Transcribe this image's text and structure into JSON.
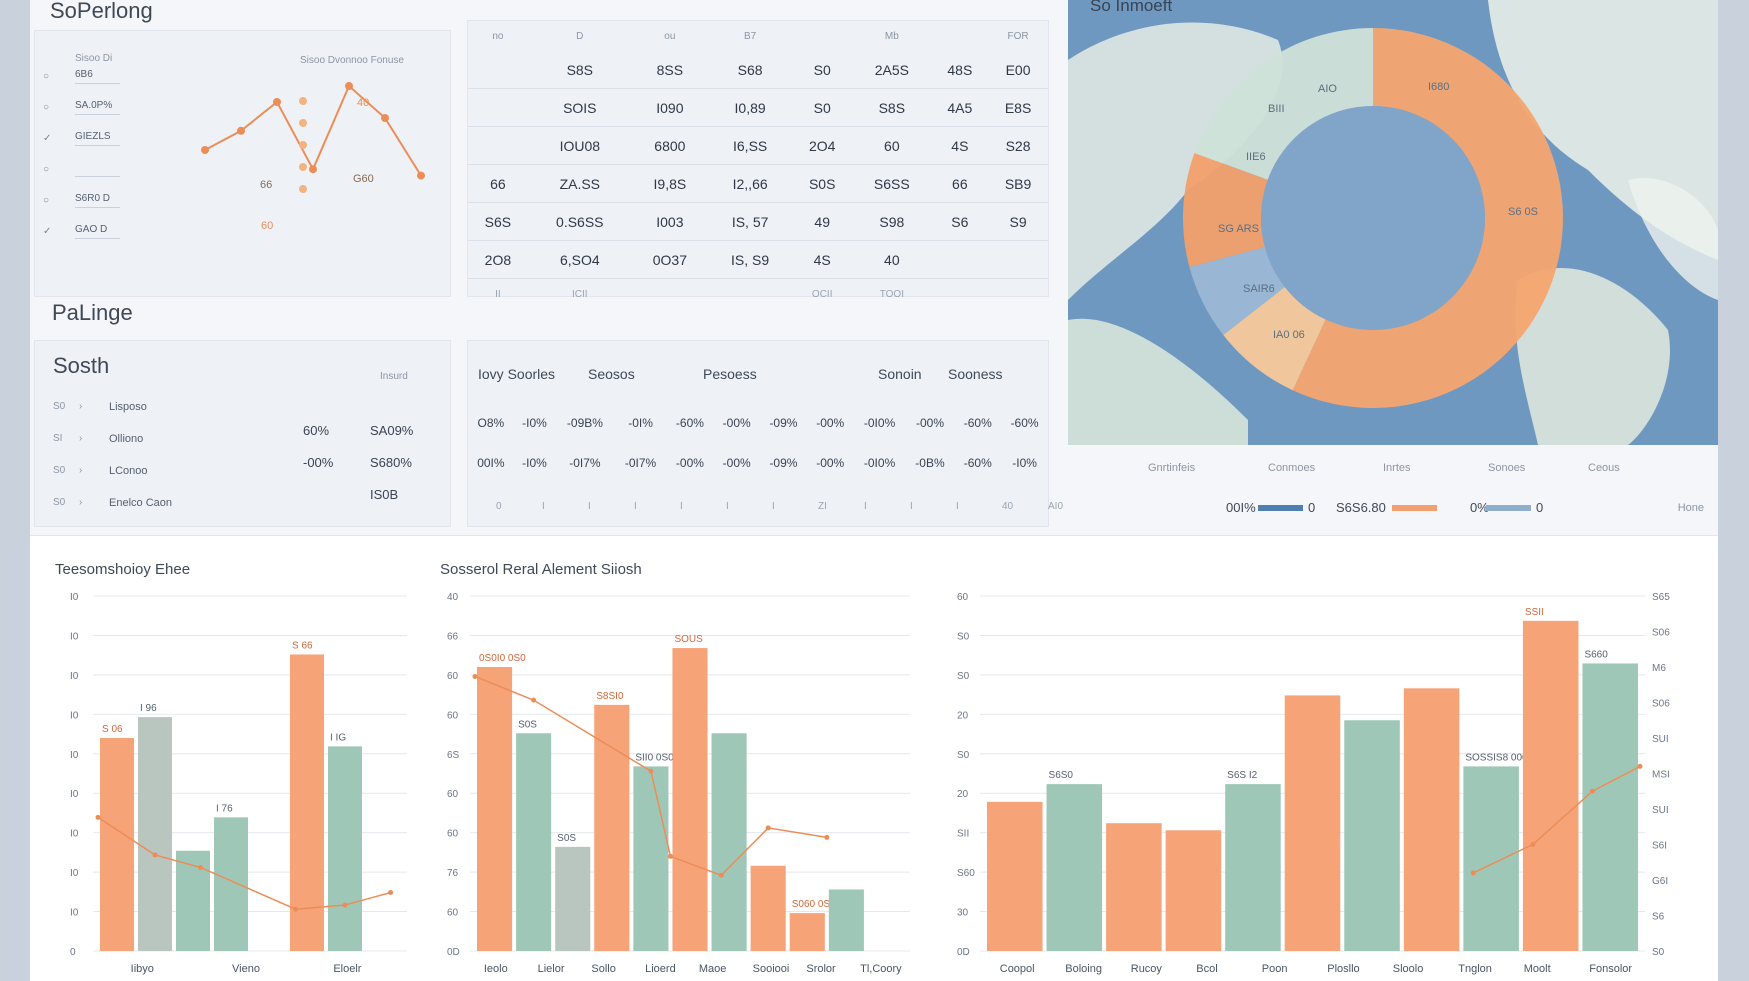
{
  "panel1": {
    "title": "SoPerlong",
    "header": "Sisoo Di",
    "chart_header": "Sisoo Dvonnoo Fonuse",
    "rows": [
      {
        "icon": "circle",
        "label": "6B6"
      },
      {
        "icon": "circle",
        "label": "SA.0P%"
      },
      {
        "icon": "check",
        "label": "GIEZLS"
      },
      {
        "icon": "circle",
        "label": ""
      },
      {
        "icon": "circle",
        "label": "S6R0 D"
      },
      {
        "icon": "check",
        "label": "GAO D"
      }
    ],
    "point_labels": [
      "40",
      "66",
      "G60",
      "60"
    ]
  },
  "table1": {
    "headers": [
      "no",
      "D",
      "ou",
      "B7",
      "",
      "Mb",
      "",
      "FOR"
    ],
    "rows": [
      [
        "",
        "S8S",
        "8SS",
        "S68",
        "S0",
        "2A5S",
        "48S",
        "E00"
      ],
      [
        "",
        "SOIS",
        "I090",
        "I0,89",
        "S0",
        "S8S",
        "4A5",
        "E8S"
      ],
      [
        "",
        "IOU08",
        "6800",
        "I6,SS",
        "2O4",
        "60",
        "4S",
        "S28"
      ],
      [
        "66",
        "ZA.SS",
        "I9,8S",
        "I2,,66",
        "S0S",
        "S6SS",
        "66",
        "SB9"
      ],
      [
        "S6S",
        "0.S6SS",
        "I003",
        "IS, 57",
        "49",
        "S98",
        "S6",
        "S9"
      ],
      [
        "2O8",
        "6,SO4",
        "0O37",
        "IS, S9",
        "4S",
        "40",
        "",
        ""
      ]
    ],
    "footer": [
      "II",
      "ICII",
      "",
      "",
      "OCII",
      "TOOI",
      "",
      ""
    ]
  },
  "panel2": {
    "section_title": "PaLinge",
    "title": "Sosth",
    "right_header": "Insurd",
    "rows": [
      {
        "num": "S0",
        "label": "Lisposo",
        "v1": "",
        "v2": ""
      },
      {
        "num": "SI",
        "label": "Olliono",
        "v1": "60%",
        "v2": "SA09%"
      },
      {
        "num": "S0",
        "label": "LConoo",
        "v1": "-00%",
        "v2": "S680%"
      },
      {
        "num": "S0",
        "label": "Enelco Caon",
        "v1": "",
        "v2": "IS0B"
      }
    ]
  },
  "table2": {
    "headers": [
      "Iovy Soorles",
      "Seosos",
      "Pesoess",
      "Sonoin",
      "Sooness"
    ],
    "row1": [
      "O8%",
      "-I0%",
      "-09B%",
      "-0I%",
      "-60%",
      "-00%",
      "-09%",
      "-00%",
      "-0I0%",
      "-00%",
      "-60%",
      "-60%"
    ],
    "row2": [
      "00I%",
      "-I0%",
      "-0I7%",
      "-0I7%",
      "-00%",
      "-00%",
      "-09%",
      "-00%",
      "-0I0%",
      "-0B%",
      "-60%",
      "-I0%"
    ],
    "footer": [
      "0",
      "I",
      "I",
      "I",
      "I",
      "I",
      "I",
      "ZI",
      "I",
      "I",
      "I",
      "40",
      "AI0"
    ]
  },
  "map_panel": {
    "title": "So Inmoeft",
    "donut_labels": [
      "AIO",
      "I680",
      "BIII",
      "IIE6",
      "SG ARS",
      "S6 0S",
      "SAIR6",
      "IA0 06"
    ],
    "legend_headers": [
      "Gnrtinfeis",
      "Conmoes",
      "Inrtes",
      "Sonoes",
      "Ceous"
    ],
    "legend_items": [
      {
        "label": "00I%",
        "color": "#4f7fb0",
        "value": "0"
      },
      {
        "label": "S6S6.80",
        "color": "#f4a06e",
        "value": ""
      },
      {
        "label": "0%",
        "color": "#8eaecb",
        "value": "0"
      }
    ],
    "legend_right": "Hone"
  },
  "colors": {
    "orange": "#f6a378",
    "sage": "#9fc7b8",
    "gray": "#b9c5bf",
    "line": "#ec8d57",
    "blue": "#4f7fb0"
  },
  "chart_data": [
    {
      "type": "line",
      "title": "",
      "points": [
        [
          1,
          3
        ],
        [
          2,
          3.6
        ],
        [
          3,
          4.5
        ],
        [
          4,
          2.4
        ],
        [
          5,
          5
        ],
        [
          6,
          4
        ],
        [
          7,
          2.2
        ]
      ]
    },
    {
      "type": "bar",
      "title": "Teesomshoioy Ehee",
      "yticks": [
        "0",
        "I0",
        "I0",
        "I0",
        "I0",
        "I0",
        "I0",
        "I0",
        "I0",
        "I0"
      ],
      "bars": [
        {
          "x": 1,
          "value": 5.1,
          "series": "orange",
          "label": "S 06"
        },
        {
          "x": 2,
          "value": 5.6,
          "series": "gray",
          "label": "I 96"
        },
        {
          "x": 3,
          "value": 2.4,
          "series": "sage",
          "label": ""
        },
        {
          "x": 4,
          "value": 3.2,
          "series": "sage",
          "label": "I 76"
        },
        {
          "x": 6,
          "value": 7.1,
          "series": "orange",
          "label": "S 66"
        },
        {
          "x": 7,
          "value": 4.9,
          "series": "sage",
          "label": "I IG"
        }
      ],
      "xlabels": [
        "Iibyo",
        "Vieno",
        "Eloelr"
      ]
    },
    {
      "type": "bar",
      "title": "Sosserol Reral Alement Siiosh",
      "yticks": [
        "0D",
        "60",
        "76",
        "60",
        "60",
        "6S",
        "60",
        "60",
        "66",
        "40"
      ],
      "bars": [
        {
          "x": 1,
          "value": 6.0,
          "series": "orange",
          "label": "0S0I0 0S0"
        },
        {
          "x": 2,
          "value": 4.6,
          "series": "sage",
          "label": "S0S"
        },
        {
          "x": 3,
          "value": 2.2,
          "series": "gray",
          "label": "S0S"
        },
        {
          "x": 4,
          "value": 5.2,
          "series": "orange",
          "label": "S8SI0"
        },
        {
          "x": 5,
          "value": 3.9,
          "series": "sage",
          "label": "SII0 0S0SI0"
        },
        {
          "x": 6,
          "value": 6.4,
          "series": "orange",
          "label": "SOUS"
        },
        {
          "x": 7,
          "value": 4.6,
          "series": "sage",
          "label": ""
        },
        {
          "x": 8,
          "value": 1.8,
          "series": "orange",
          "label": ""
        },
        {
          "x": 9,
          "value": 0.8,
          "series": "orange",
          "label": "S060 0S0"
        },
        {
          "x": 10,
          "value": 1.3,
          "series": "sage",
          "label": ""
        }
      ],
      "xlabels": [
        "Ieolo",
        "Lielor",
        "Sollo",
        "Lioerd",
        "Maoe",
        "Sooiooi",
        "Srolor",
        "Tl,Coory"
      ]
    },
    {
      "type": "bar",
      "title": "",
      "yticks_left": [
        "0D",
        "30",
        "S60",
        "SII",
        "20",
        "S0",
        "20",
        "S0",
        "S0",
        "60"
      ],
      "yticks_right": [
        "S0",
        "S6",
        "G6I",
        "S6I",
        "SUI",
        "MSI",
        "SUI",
        "S06",
        "M6",
        "S06",
        "S65"
      ],
      "bars": [
        {
          "x": 1,
          "value": 4.2,
          "series": "orange",
          "label": ""
        },
        {
          "x": 2,
          "value": 4.7,
          "series": "sage",
          "label": "S6S0"
        },
        {
          "x": 3,
          "value": 3.6,
          "series": "orange",
          "label": ""
        },
        {
          "x": 4,
          "value": 3.4,
          "series": "orange",
          "label": ""
        },
        {
          "x": 5,
          "value": 4.7,
          "series": "sage",
          "label": "S6S I2"
        },
        {
          "x": 6,
          "value": 7.2,
          "series": "orange",
          "label": ""
        },
        {
          "x": 7,
          "value": 6.5,
          "series": "sage",
          "label": ""
        },
        {
          "x": 8,
          "value": 7.4,
          "series": "orange",
          "label": ""
        },
        {
          "x": 9,
          "value": 5.2,
          "series": "sage",
          "label": "SOSSIS8 0000"
        },
        {
          "x": 10,
          "value": 9.3,
          "series": "orange",
          "label": "SSII"
        },
        {
          "x": 11,
          "value": 8.1,
          "series": "sage",
          "label": "S660"
        }
      ],
      "xlabels": [
        "Coopol",
        "Boloing",
        "Rucoy",
        "Bcol",
        "Poon",
        "Plosllo",
        "Sloolo",
        "Tnglon",
        "Moolt",
        "Fonsolor"
      ]
    }
  ]
}
